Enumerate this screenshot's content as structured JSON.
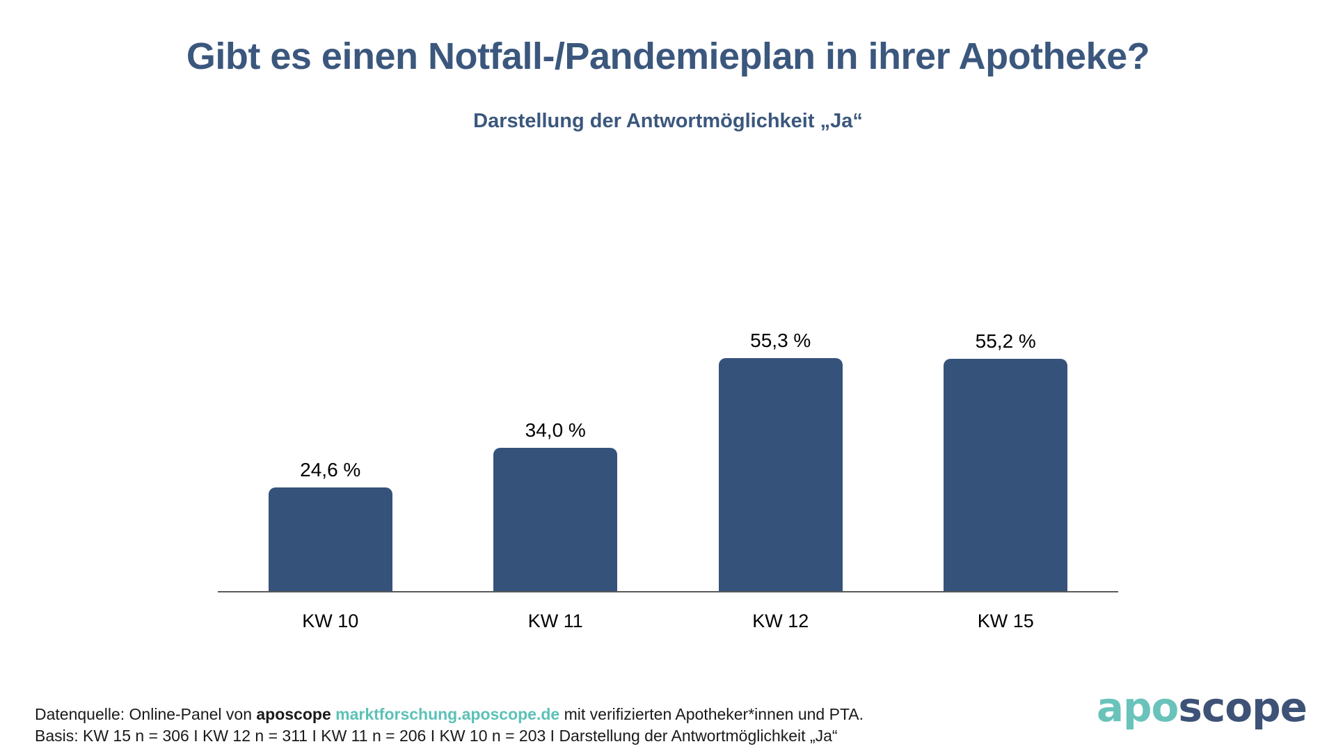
{
  "header": {
    "title": "Gibt es einen Notfall-/Pandemieplan in ihrer Apotheke?",
    "subtitle": "Darstellung der Antwortmöglichkeit „Ja“"
  },
  "chart_data": {
    "type": "bar",
    "title": "Gibt es einen Notfall-/Pandemieplan in ihrer Apotheke?",
    "subtitle": "Darstellung der Antwortmöglichkeit „Ja“",
    "categories": [
      "KW 10",
      "KW 11",
      "KW 12",
      "KW 15"
    ],
    "values": [
      24.6,
      34.0,
      55.3,
      55.2
    ],
    "value_labels": [
      "24,6 %",
      "34,0 %",
      "55,3 %",
      "55,2 %"
    ],
    "unit": "%",
    "ylim": [
      0,
      66
    ],
    "grid": false,
    "legend": "none",
    "bar_color": "#35527A",
    "axis_color": "#595959"
  },
  "footer": {
    "source_prefix": "Datenquelle: Online-Panel von ",
    "source_brand": "aposcope",
    "source_link": "marktforschung.aposcope.de",
    "source_suffix": " mit verifizierten Apotheker*innen und PTA.",
    "basis": "Basis: KW 15 n = 306 I KW 12 n = 311 I KW 11 n = 206 I KW 10 n = 203 I Darstellung der Antwortmöglichkeit „Ja“"
  },
  "logo": {
    "part1": "apo",
    "part2": "scope",
    "part1_color": "#69C3BB",
    "part2_color": "#3E5277"
  },
  "colors": {
    "title_text": "#3B577D",
    "body_text": "#1A1A1A",
    "link_teal": "#5CC1B7",
    "background": "#FFFFFF"
  }
}
